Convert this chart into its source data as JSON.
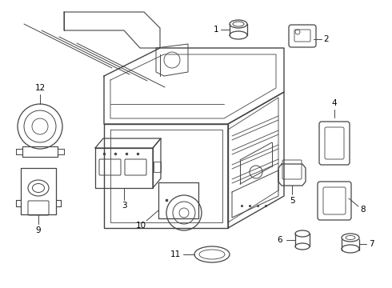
{
  "bg_color": "#ffffff",
  "line_color": "#444444",
  "label_color": "#000000",
  "figsize": [
    4.9,
    3.6
  ],
  "dpi": 100
}
